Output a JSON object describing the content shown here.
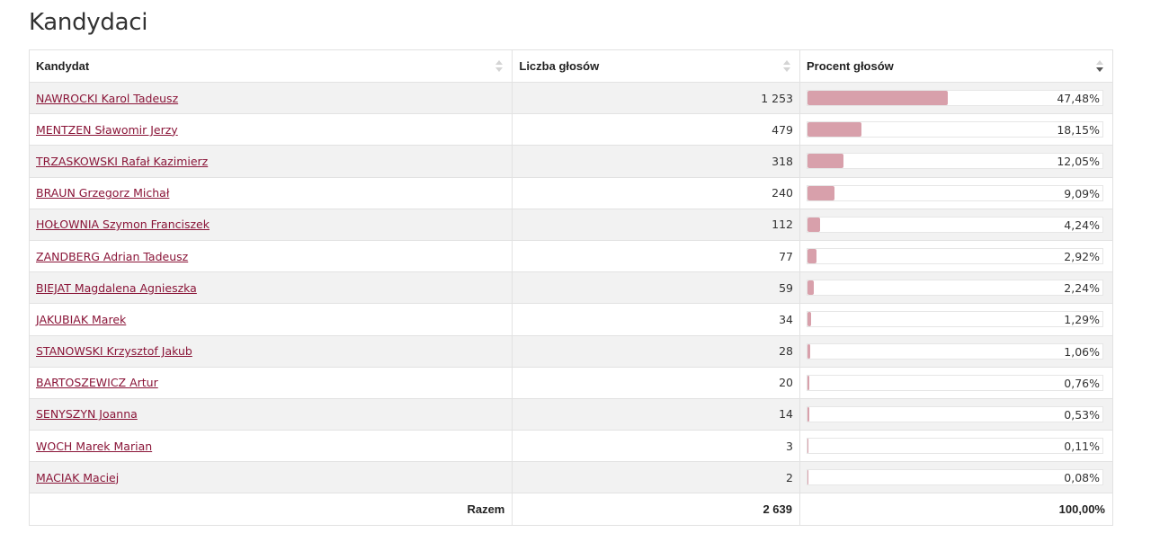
{
  "title": "Kandydaci",
  "headers": {
    "candidate": "Kandydat",
    "votes": "Liczba głosów",
    "percent": "Procent głosów"
  },
  "rows": [
    {
      "name": "NAWROCKI Karol Tadeusz",
      "votes": "1 253",
      "percent_label": "47,48%",
      "percent": 47.48
    },
    {
      "name": "MENTZEN Sławomir Jerzy",
      "votes": "479",
      "percent_label": "18,15%",
      "percent": 18.15
    },
    {
      "name": "TRZASKOWSKI Rafał Kazimierz",
      "votes": "318",
      "percent_label": "12,05%",
      "percent": 12.05
    },
    {
      "name": "BRAUN Grzegorz Michał",
      "votes": "240",
      "percent_label": "9,09%",
      "percent": 9.09
    },
    {
      "name": "HOŁOWNIA Szymon Franciszek",
      "votes": "112",
      "percent_label": "4,24%",
      "percent": 4.24
    },
    {
      "name": "ZANDBERG Adrian Tadeusz",
      "votes": "77",
      "percent_label": "2,92%",
      "percent": 2.92
    },
    {
      "name": "BIEJAT Magdalena Agnieszka",
      "votes": "59",
      "percent_label": "2,24%",
      "percent": 2.24
    },
    {
      "name": "JAKUBIAK Marek",
      "votes": "34",
      "percent_label": "1,29%",
      "percent": 1.29
    },
    {
      "name": "STANOWSKI Krzysztof Jakub",
      "votes": "28",
      "percent_label": "1,06%",
      "percent": 1.06
    },
    {
      "name": "BARTOSZEWICZ Artur",
      "votes": "20",
      "percent_label": "0,76%",
      "percent": 0.76
    },
    {
      "name": "SENYSZYN Joanna",
      "votes": "14",
      "percent_label": "0,53%",
      "percent": 0.53
    },
    {
      "name": "WOCH Marek Marian",
      "votes": "3",
      "percent_label": "0,11%",
      "percent": 0.11
    },
    {
      "name": "MACIAK Maciej",
      "votes": "2",
      "percent_label": "0,08%",
      "percent": 0.08
    }
  ],
  "total": {
    "label": "Razem",
    "votes": "2 639",
    "percent": "100,00%"
  },
  "colors": {
    "link": "#8a1538",
    "bar": "#d8a0ab",
    "row_alt": "#f2f2f2"
  }
}
